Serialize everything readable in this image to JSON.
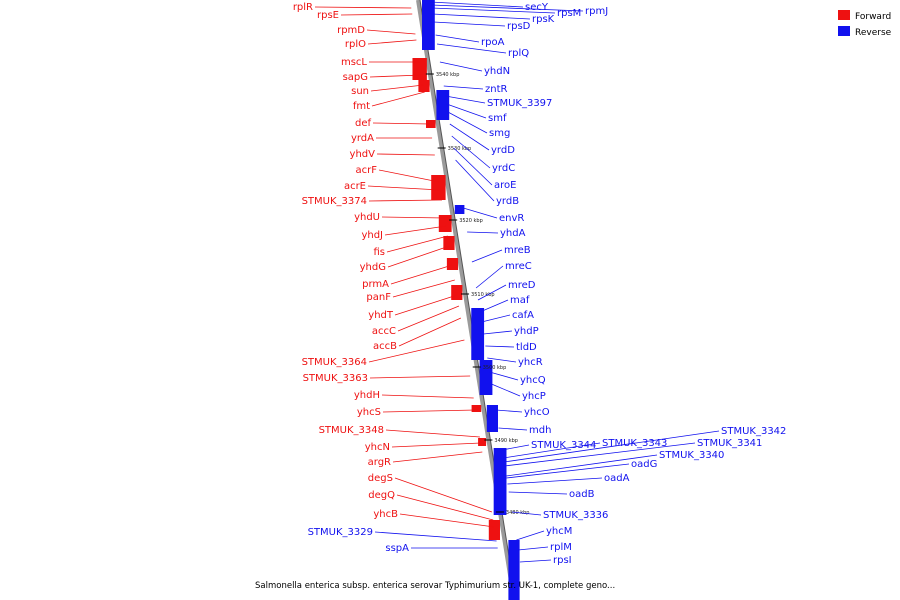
{
  "caption": "Salmonella enterica subsp. enterica serovar Typhimurium str. UK-1, complete geno...",
  "legend": [
    {
      "label": "Forward",
      "color": "#ee1111"
    },
    {
      "label": "Reverse",
      "color": "#1111ee"
    }
  ],
  "ticks": [
    "3540 kbp",
    "3530 kbp",
    "3520 kbp",
    "3510 kbp",
    "3500 kbp",
    "3490 kbp",
    "3480 kbp"
  ],
  "forward_genes": [
    "rplR",
    "rpsE",
    "rpmD",
    "rplO",
    "mscL",
    "sapG",
    "sun",
    "fmt",
    "def",
    "yrdA",
    "yhdV",
    "acrF",
    "acrE",
    "STMUK_3374",
    "yhdU",
    "yhdJ",
    "fis",
    "yhdG",
    "prmA",
    "panF",
    "yhdT",
    "accC",
    "accB",
    "STMUK_3364",
    "STMUK_3363",
    "yhdH",
    "yhcS",
    "STMUK_3348",
    "yhcN",
    "argR",
    "degS",
    "degQ",
    "yhcB",
    "STMUK_3329",
    "sspA"
  ],
  "reverse_genes": [
    "secY",
    "rpsM",
    "rpmJ",
    "rpsK",
    "rpsD",
    "rpoA",
    "rplQ",
    "yhdN",
    "zntR",
    "STMUK_3397",
    "smf",
    "smg",
    "yrdD",
    "yrdC",
    "aroE",
    "yrdB",
    "envR",
    "yhdA",
    "mreB",
    "mreC",
    "mreD",
    "maf",
    "cafA",
    "yhdP",
    "tldD",
    "yhcR",
    "yhcQ",
    "yhcP",
    "yhcO",
    "mdh",
    "STMUK_3344",
    "STMUK_3343",
    "STMUK_3342",
    "STMUK_3341",
    "STMUK_3340",
    "oadG",
    "oadA",
    "oadB",
    "STMUK_3336",
    "yhcM",
    "rplM",
    "rpsI"
  ]
}
